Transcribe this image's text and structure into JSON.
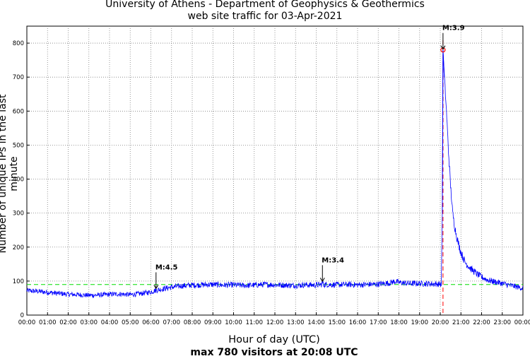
{
  "chart_data": {
    "type": "line",
    "title": "University of Athens - Department of Geophysics & Geothermics",
    "subtitle": "web site traffic for 03-Apr-2021",
    "xlabel": "Hour of day (UTC)",
    "footnote": "max 780 visitors at 20:08 UTC",
    "ylabel": "Number of unique IPs in the last minute",
    "xlim": [
      0,
      24
    ],
    "ylim": [
      0,
      850
    ],
    "yticks": [
      0,
      100,
      200,
      300,
      400,
      500,
      600,
      700,
      800
    ],
    "xtick_labels": [
      "00:00",
      "01:00",
      "02:00",
      "03:00",
      "04:00",
      "05:00",
      "06:00",
      "07:00",
      "08:00",
      "09:00",
      "10:00",
      "11:00",
      "12:00",
      "13:00",
      "14:00",
      "15:00",
      "16:00",
      "17:00",
      "18:00",
      "19:00",
      "20:00",
      "21:00",
      "22:00",
      "23:00",
      "00:00"
    ],
    "grid": true,
    "series": [
      {
        "color": "#0000ff",
        "x": [
          0,
          0.5,
          1,
          1.5,
          2,
          2.5,
          3,
          3.5,
          4,
          4.5,
          5,
          5.5,
          6,
          6.25,
          6.5,
          7,
          7.5,
          8,
          8.5,
          9,
          9.5,
          10,
          10.5,
          11,
          11.5,
          12,
          12.5,
          13,
          13.5,
          14,
          14.25,
          14.3,
          14.35,
          14.5,
          15,
          15.5,
          16,
          16.5,
          17,
          17.5,
          17.8,
          18,
          18.5,
          19,
          19.5,
          20,
          20.05,
          20.1,
          20.133,
          20.2,
          20.3,
          20.4,
          20.5,
          20.6,
          20.7,
          20.8,
          20.9,
          21,
          21.2,
          21.5,
          21.8,
          22,
          22.3,
          22.5,
          23,
          23.5,
          24
        ],
        "y": [
          72,
          70,
          67,
          64,
          61,
          60,
          58,
          59,
          61,
          62,
          60,
          63,
          68,
          73,
          76,
          82,
          86,
          88,
          89,
          90,
          88,
          89,
          87,
          88,
          90,
          89,
          88,
          87,
          89,
          88,
          90,
          97,
          89,
          90,
          89,
          90,
          89,
          90,
          91,
          94,
          99,
          96,
          93,
          93,
          92,
          91,
          90,
          300,
          780,
          700,
          600,
          480,
          380,
          300,
          260,
          230,
          205,
          185,
          155,
          135,
          120,
          112,
          103,
          100,
          93,
          86,
          79
        ]
      }
    ],
    "reference_lines": [
      {
        "orientation": "horizontal",
        "y": 90,
        "color": "#00dd00",
        "style": "dashed"
      },
      {
        "orientation": "vertical",
        "x": 20.133,
        "color": "#ff0000",
        "style": "dashed"
      }
    ],
    "markers": [
      {
        "x": 20.133,
        "y": 780,
        "shape": "circle",
        "color": "#ff0000"
      }
    ],
    "annotations": [
      {
        "text": "M:4.5",
        "x": 6.25,
        "y": 76
      },
      {
        "text": "M:3.4",
        "x": 14.3,
        "y": 97
      },
      {
        "text": "M:3.9",
        "x": 20.133,
        "y": 780
      }
    ]
  }
}
